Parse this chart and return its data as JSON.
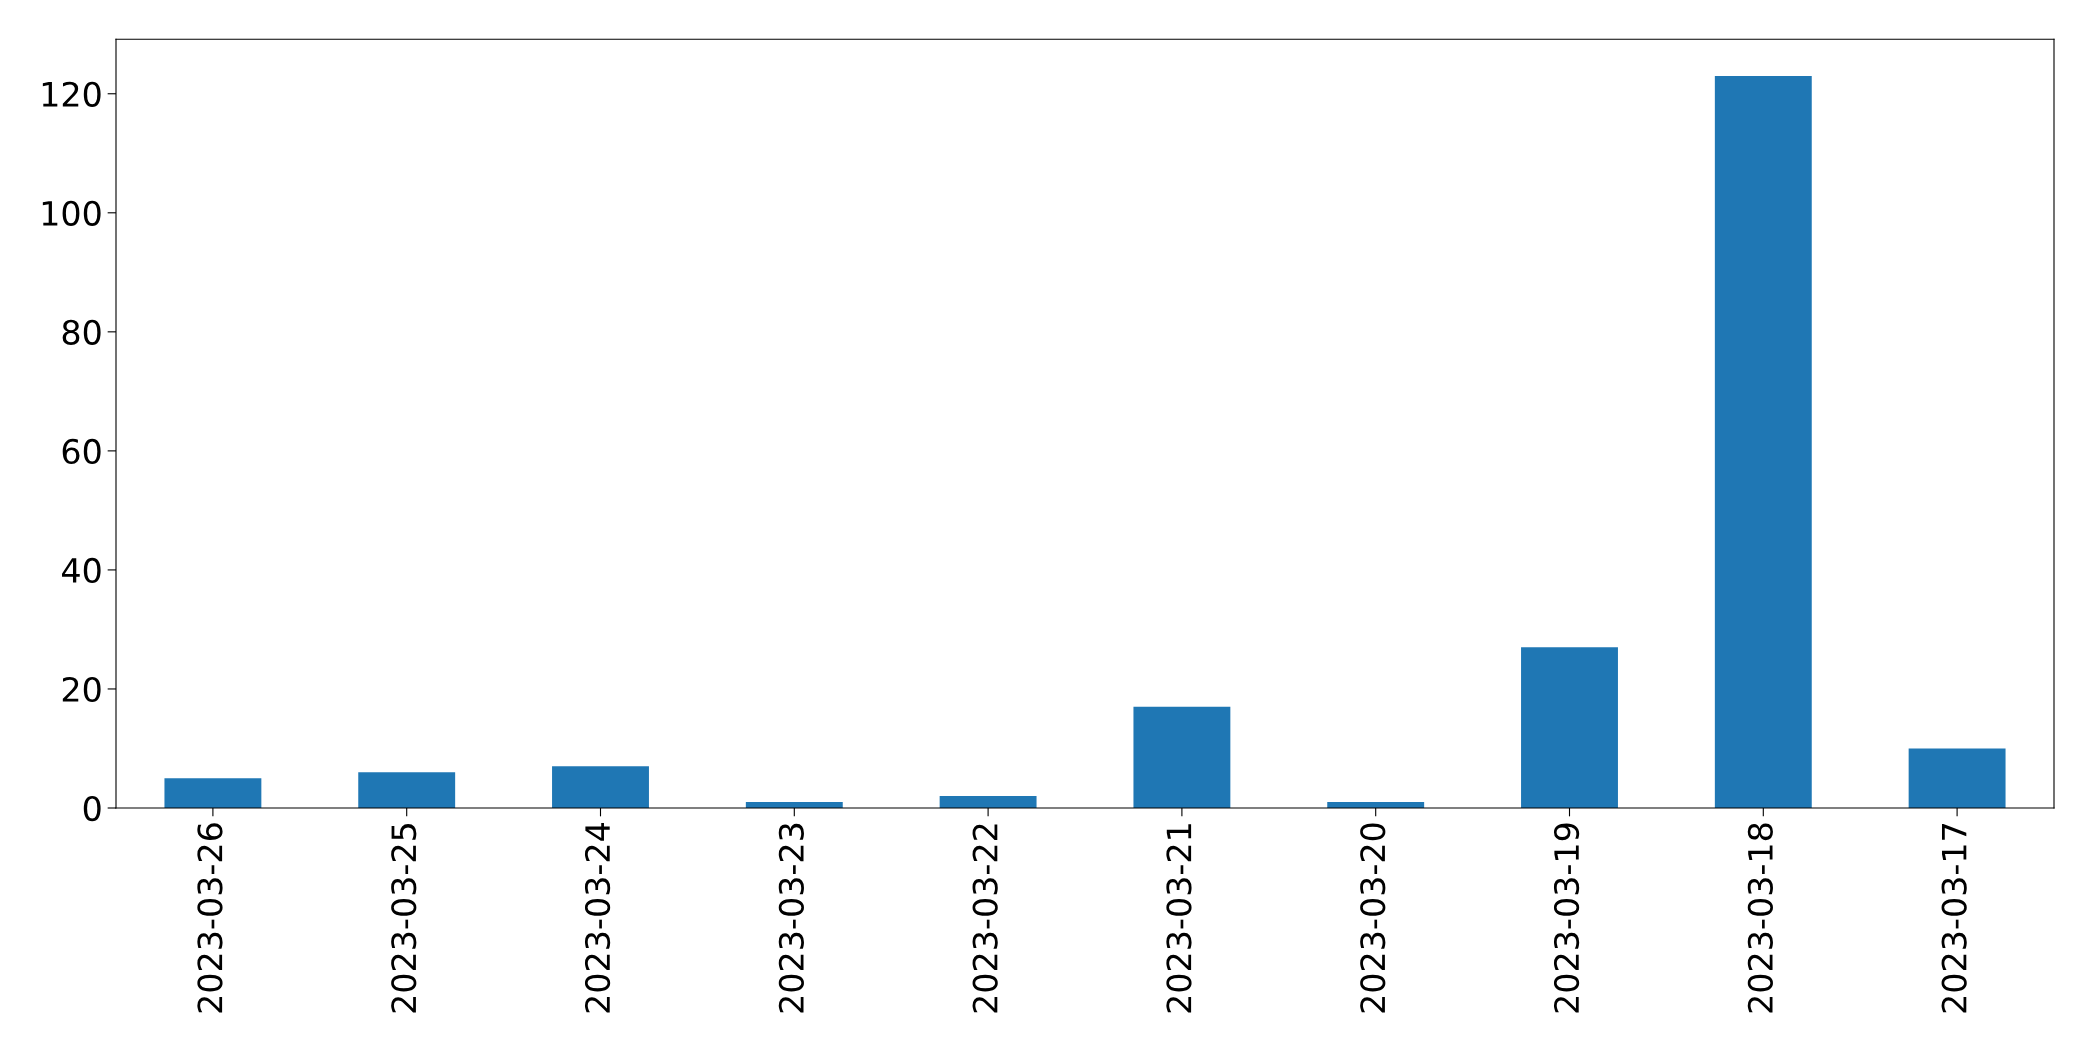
{
  "chart_data": {
    "type": "bar",
    "categories": [
      "2023-03-26",
      "2023-03-25",
      "2023-03-24",
      "2023-03-23",
      "2023-03-22",
      "2023-03-21",
      "2023-03-20",
      "2023-03-19",
      "2023-03-18",
      "2023-03-17"
    ],
    "values": [
      5,
      6,
      7,
      1,
      2,
      17,
      1,
      27,
      123,
      10
    ],
    "color": "#1f77b4",
    "ylim": [
      0,
      129.15
    ],
    "yticks": [
      0,
      20,
      40,
      60,
      80,
      100,
      120
    ],
    "grid": false,
    "legend": false
  }
}
